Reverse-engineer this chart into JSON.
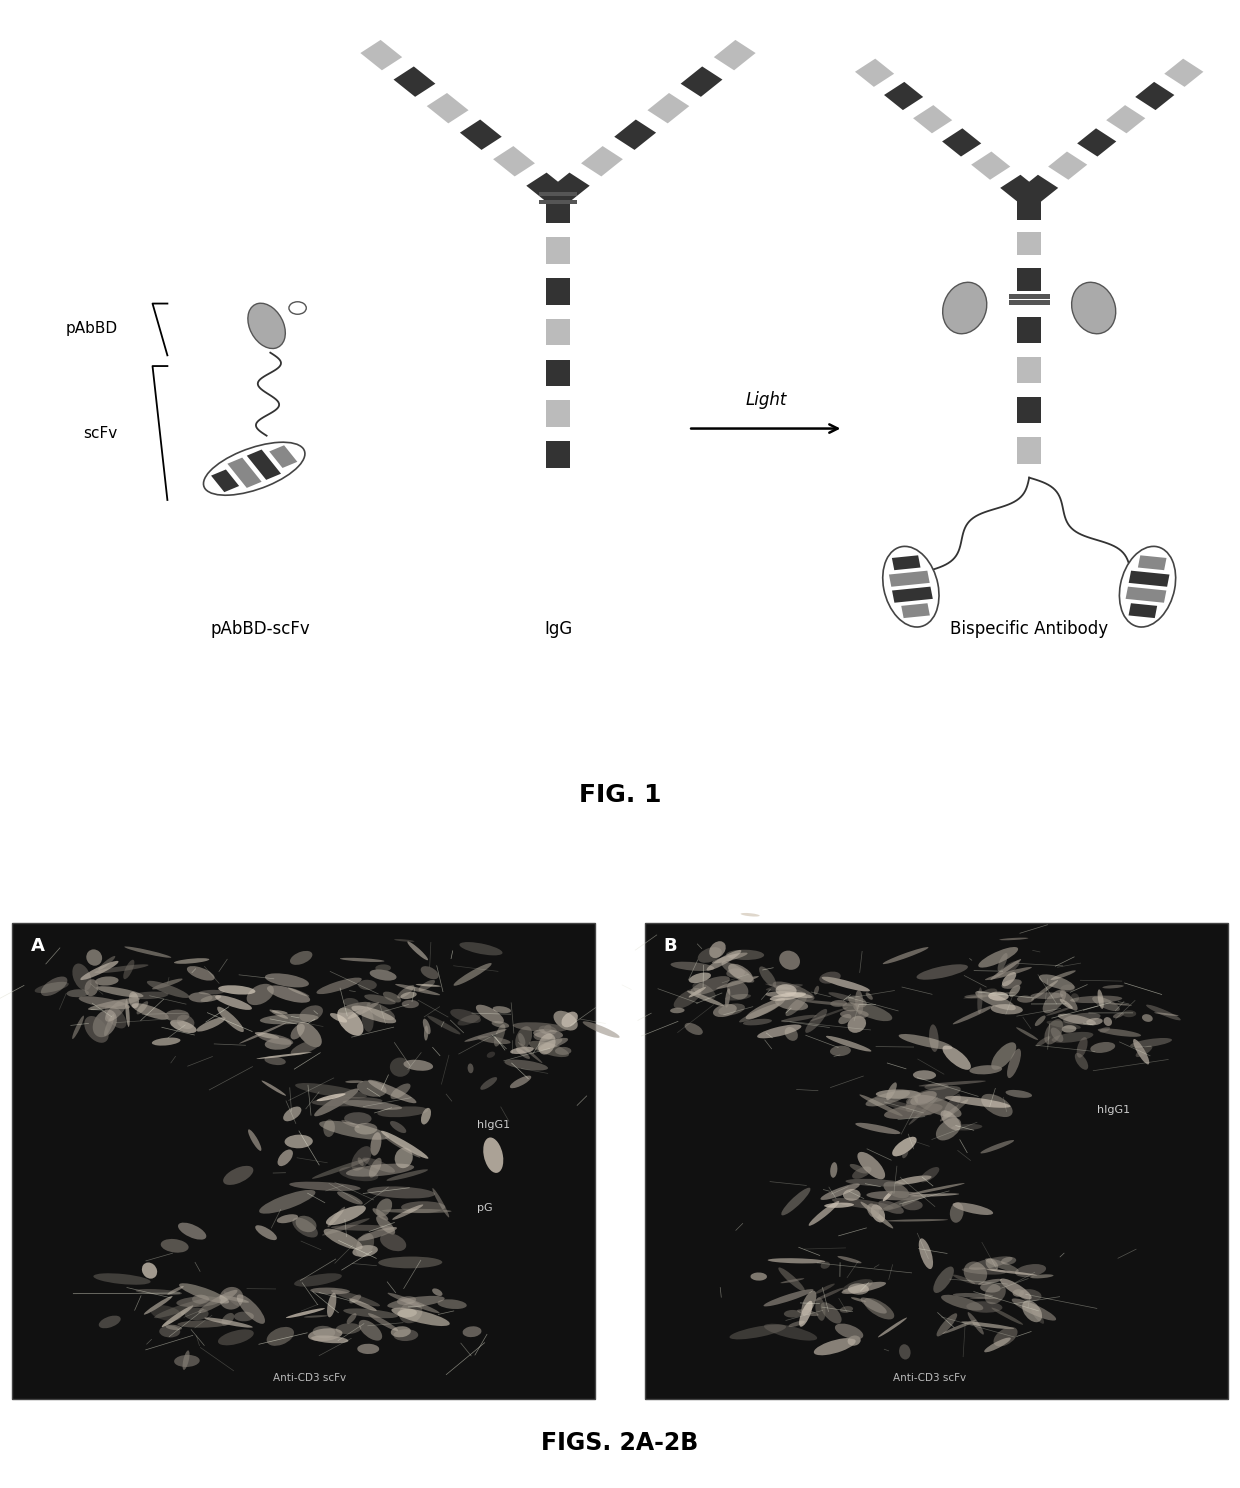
{
  "fig1_title": "FIG. 1",
  "fig2_title": "FIGS. 2A-2B",
  "label_pAbBD": "pAbBD",
  "label_scFv": "scFv",
  "label_pAbBD_scFv": "pAbBD-scFv",
  "label_IgG": "IgG",
  "label_arrow": "Light",
  "label_bispecific": "Bispecific Antibody",
  "label_A": "A",
  "label_B": "B",
  "label_hIgG1_A": "hIgG1",
  "label_pG_A": "pG",
  "label_antiCD3_A": "Anti-CD3 scFv",
  "label_hIgG1_B": "hIgG1",
  "label_antiCD3_B": "Anti-CD3 scFv",
  "dark_bg": "#111111",
  "arm_dark": "#333333",
  "arm_light": "#bbbbbb",
  "stem_dark": "#222222",
  "stem_light": "#999999"
}
